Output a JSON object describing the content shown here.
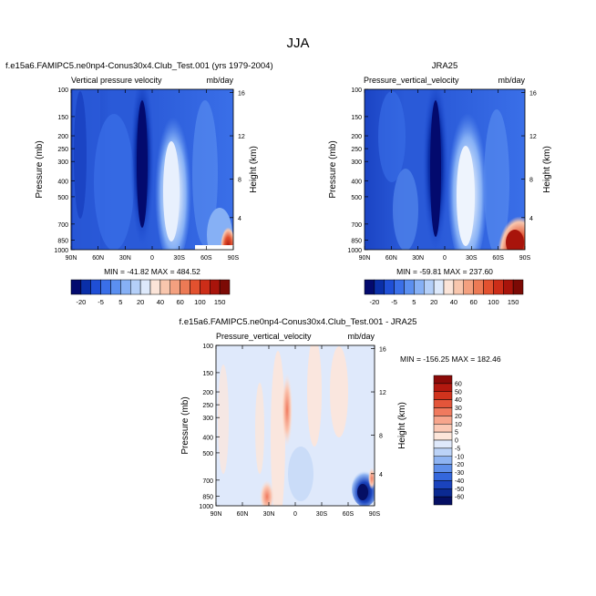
{
  "figure": {
    "main_title": "JJA",
    "panels": [
      {
        "id": "top-left",
        "header_left": "f.e15a6.FAMIPC5.ne0np4-Conus30x4.Club_Test.001 (yrs 1979-2004)",
        "subtitle": "Vertical pressure velocity",
        "units": "mb/day",
        "minmax": "MIN = -41.82   MAX = 484.52"
      },
      {
        "id": "top-right",
        "header_center": "JRA25",
        "subtitle": "Pressure_vertical_velocity",
        "units": "mb/day",
        "minmax": "MIN = -59.81   MAX = 237.60"
      },
      {
        "id": "bottom",
        "header_center": "f.e15a6.FAMIPC5.ne0np4-Conus30x4.Club_Test.001 - JRA25",
        "subtitle": "Pressure_vertical_velocity",
        "units": "mb/day",
        "minmax": "MIN = -156.25   MAX = 182.46"
      }
    ]
  },
  "chart_data": [
    {
      "type": "heatmap",
      "title": "Vertical pressure velocity",
      "xlabel": "",
      "ylabel": "Pressure (mb)",
      "y2label": "Height (km)",
      "x_ticks": [
        "90N",
        "60N",
        "30N",
        "0",
        "30S",
        "60S",
        "90S"
      ],
      "y_ticks": [
        "100",
        "150",
        "200",
        "250",
        "300",
        "400",
        "500",
        "700",
        "850",
        "1000"
      ],
      "y2_ticks": [
        "16",
        "12",
        "8",
        "4"
      ],
      "colorbar_labels": [
        "-20",
        "-5",
        "5",
        "20",
        "40",
        "60",
        "100",
        "150"
      ],
      "colorbar_colors": [
        "#030a6e",
        "#0a2fa8",
        "#1f4fd6",
        "#3a6fe8",
        "#5b8ff0",
        "#86b0f5",
        "#b4cff8",
        "#dde9fb",
        "#fbe4d8",
        "#f8c6ad",
        "#f3a07f",
        "#ec7a55",
        "#e2512f",
        "#cc2d18",
        "#a8140b",
        "#7c0a05"
      ],
      "min": -41.82,
      "max": 484.52
    },
    {
      "type": "heatmap",
      "title": "Pressure_vertical_velocity",
      "xlabel": "",
      "ylabel": "Pressure (mb)",
      "y2label": "Height (km)",
      "x_ticks": [
        "90N",
        "60N",
        "30N",
        "0",
        "30S",
        "60S",
        "90S"
      ],
      "y_ticks": [
        "100",
        "150",
        "200",
        "250",
        "300",
        "400",
        "500",
        "700",
        "850",
        "1000"
      ],
      "y2_ticks": [
        "16",
        "12",
        "8",
        "4"
      ],
      "colorbar_labels": [
        "-20",
        "-5",
        "5",
        "20",
        "40",
        "60",
        "100",
        "150"
      ],
      "min": -59.81,
      "max": 237.6
    },
    {
      "type": "heatmap",
      "title": "Pressure_vertical_velocity",
      "xlabel": "",
      "ylabel": "Pressure (mb)",
      "y2label": "Height (km)",
      "x_ticks": [
        "90N",
        "60N",
        "30N",
        "0",
        "30S",
        "60S",
        "90S"
      ],
      "y_ticks": [
        "100",
        "150",
        "200",
        "250",
        "300",
        "400",
        "500",
        "700",
        "850",
        "1000"
      ],
      "y2_ticks": [
        "16",
        "12",
        "8",
        "4"
      ],
      "colorbar_labels": [
        "60",
        "50",
        "40",
        "30",
        "20",
        "10",
        "5",
        "0",
        "-5",
        "-10",
        "-20",
        "-30",
        "-40",
        "-50",
        "-60"
      ],
      "colorbar_colors": [
        "#8b0a08",
        "#b3180f",
        "#d0331d",
        "#e3553a",
        "#f07a5e",
        "#f7a58c",
        "#fbc8b4",
        "#fde6da",
        "#dfe9fb",
        "#bcd3f7",
        "#8fb4f2",
        "#5f8fea",
        "#3467dc",
        "#1a43bd",
        "#0b2a92",
        "#050f63"
      ],
      "min": -156.25,
      "max": 182.46
    }
  ]
}
